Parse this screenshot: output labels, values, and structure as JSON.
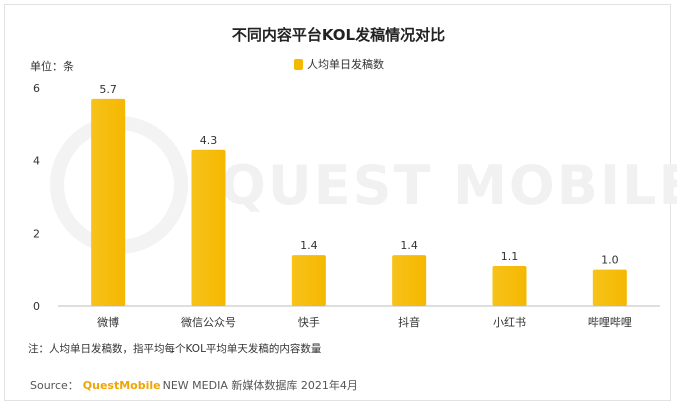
{
  "chart_data": {
    "type": "bar",
    "title": "不同内容平台KOL发稿情况对比",
    "unit_label": "单位：条",
    "categories": [
      "微博",
      "微信公众号",
      "快手",
      "抖音",
      "小红书",
      "哔哩哔哩"
    ],
    "series": [
      {
        "name": "人均单日发稿数",
        "values": [
          5.7,
          4.3,
          1.4,
          1.4,
          1.1,
          1.0
        ]
      }
    ],
    "value_labels": [
      "5.7",
      "4.3",
      "1.4",
      "1.4",
      "1.1",
      "1.0"
    ],
    "y_ticks": [
      "0",
      "2",
      "4",
      "6"
    ],
    "ylim": [
      0,
      6
    ],
    "grid": false,
    "legend_position": "top-center",
    "bar_color": "#f5b800"
  },
  "watermark": "QUEST MOBILE",
  "note": "注：人均单日发稿数，指平均每个KOL平均单天发稿的内容数量",
  "source": {
    "label": "Source：",
    "brand": "QuestMobile",
    "rest": "NEW MEDIA 新媒体数据库 2021年4月"
  }
}
